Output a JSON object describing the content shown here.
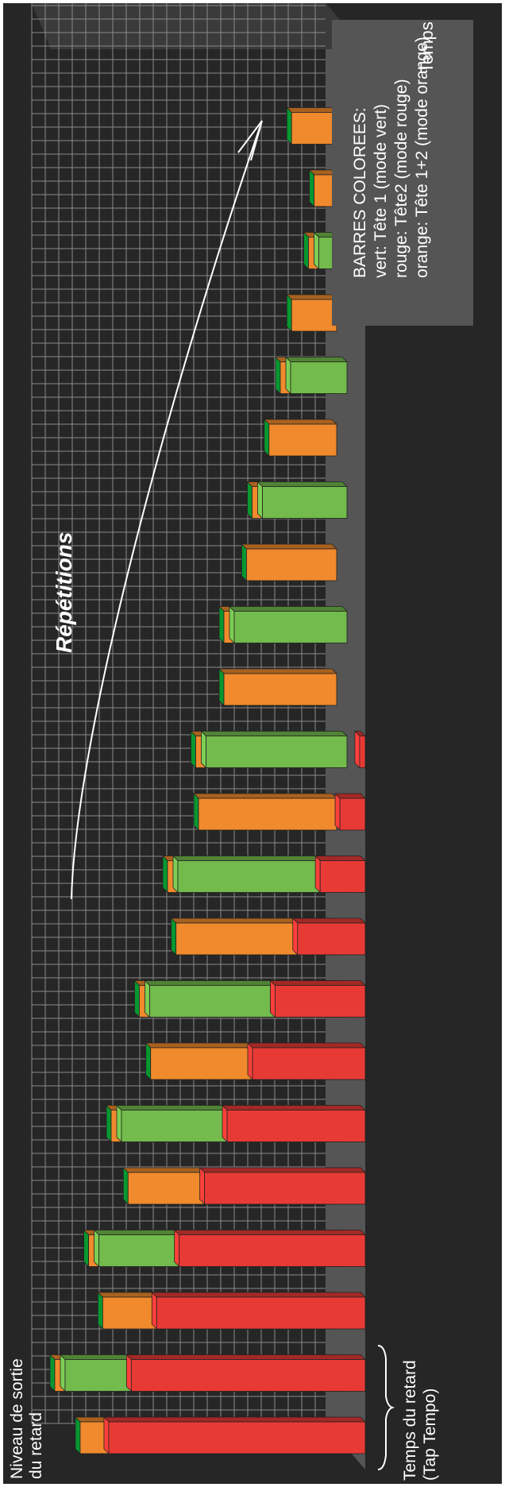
{
  "chart_data": {
    "type": "bar",
    "y_axis_label": [
      "Niveau de sortie",
      "du retard"
    ],
    "x_axis_label": "Temps",
    "delay_time_label": [
      "Temps du retard",
      "(Tap Tempo)"
    ],
    "arrow_label": "Répétitions",
    "legend": {
      "title": "BARRES COLOREES:",
      "entries": [
        {
          "text": "vert: Tête 1 (mode vert)",
          "color": "#72bb4c"
        },
        {
          "text": "rouge: Tête2 (mode rouge)",
          "color": "#e83a35"
        },
        {
          "text": "orange: Tête 1+2 (mode orange)",
          "color": "#f08a2c"
        }
      ]
    },
    "series": [
      {
        "name": "vert",
        "color": "#72bb4c",
        "values": [
          null,
          100,
          null,
          88,
          null,
          80,
          null,
          70,
          null,
          60,
          null,
          50,
          null,
          40,
          null,
          30,
          null,
          20,
          null,
          10
        ]
      },
      {
        "name": "rouge",
        "color": "#e83a35",
        "values": [
          91,
          83,
          74,
          66,
          57,
          49,
          40,
          32,
          24,
          16,
          9,
          2,
          null,
          null,
          null,
          null,
          null,
          null,
          null,
          null
        ]
      },
      {
        "name": "orange",
        "color": "#f08a2c",
        "values": [
          91,
          100,
          83,
          88,
          74,
          80,
          66,
          70,
          57,
          60,
          49,
          50,
          40,
          40,
          32,
          30,
          24,
          20,
          16,
          10,
          8,
          16
        ]
      }
    ],
    "ylim": [
      0,
      100
    ],
    "grid": true,
    "legend_placement": "top-right"
  }
}
